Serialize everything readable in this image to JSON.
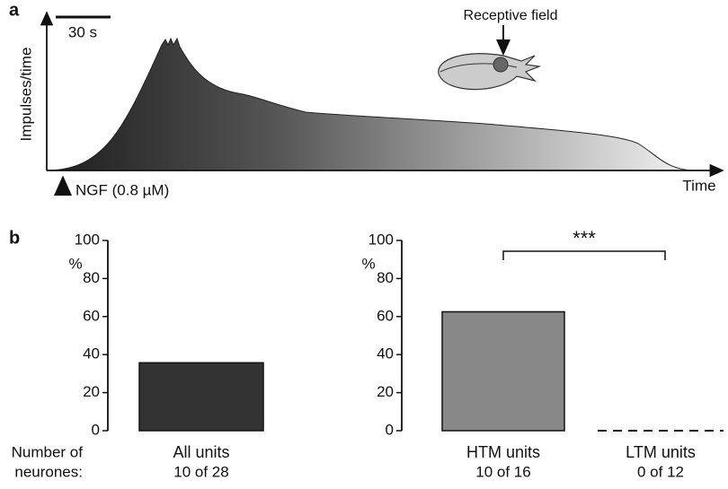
{
  "panel_a": {
    "label": "a",
    "scale_bar": "30 s",
    "y_label": "Impulses/time",
    "x_label": "Time",
    "stimulus": "NGF (0.8 µM)",
    "receptive_field": "Receptive field"
  },
  "panel_b": {
    "label": "b",
    "row_label": [
      "Number of",
      "neurones:"
    ]
  },
  "chart_data": [
    {
      "type": "bar",
      "categories": [
        "All units"
      ],
      "counts": [
        "10 of 28"
      ],
      "values": [
        35.7
      ],
      "color": "#333333",
      "y_label": "%",
      "ylim": [
        0,
        100
      ],
      "yticks": [
        0,
        20,
        40,
        60,
        80,
        100
      ]
    },
    {
      "type": "bar",
      "categories": [
        "HTM units",
        "LTM units"
      ],
      "counts": [
        "10 of 16",
        "0 of 12"
      ],
      "values": [
        62.5,
        0
      ],
      "color": "#888888",
      "y_label": "%",
      "ylim": [
        0,
        100
      ],
      "yticks": [
        0,
        20,
        40,
        60,
        80,
        100
      ],
      "annotation": "***"
    }
  ]
}
